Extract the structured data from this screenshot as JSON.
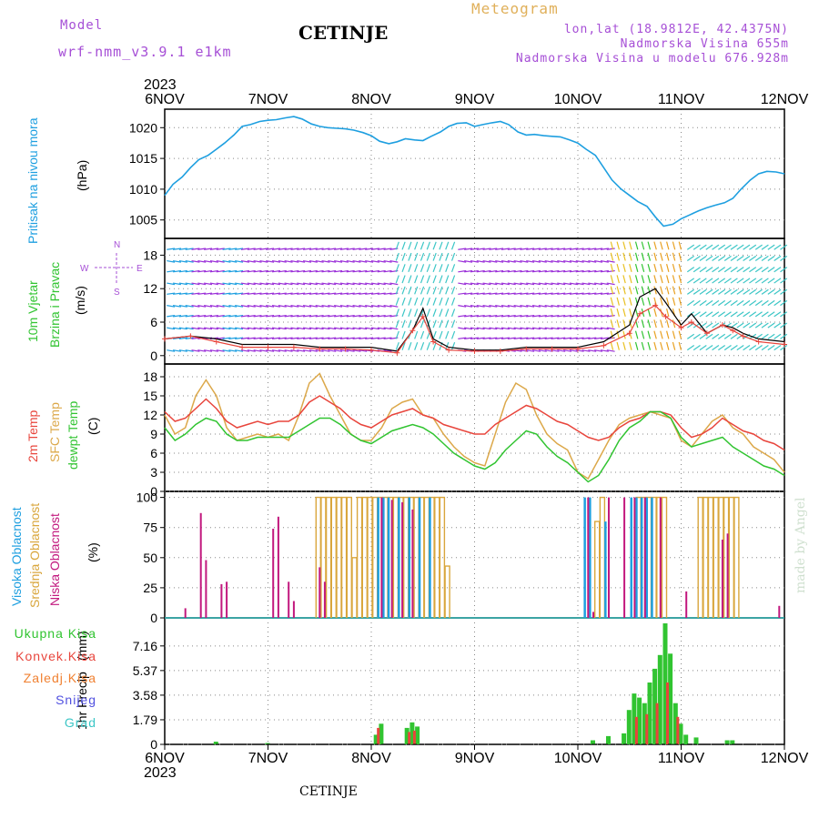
{
  "header": {
    "model_label": "Model",
    "model_name": "wrf-nmm_v3.9.1  e1km",
    "station_title": "CETINJE",
    "product": "Meteogram",
    "coords": "lon,lat (18.9812E, 42.4375N)",
    "elevation": "Nadmorska Visina 655m",
    "model_elevation": "Nadmorska Visina u modelu 676.928m",
    "watermark": "made by Angel",
    "footer_station": "CETINJE"
  },
  "colors": {
    "pressure": "#1e9fe0",
    "temp2m": "#e8453c",
    "sfc_temp": "#dca84a",
    "dewpt": "#31c431",
    "high_cloud": "#1e9fe0",
    "mid_cloud": "#d9a63c",
    "low_cloud": "#c2187e",
    "total_precip": "#31c431",
    "conv_precip": "#e8453c",
    "frozen": "#f08030",
    "snow": "#5050e0",
    "graupel": "#3cc6c6",
    "wind_purple": "#9a2fd8",
    "gust": "#000000",
    "wind_speed": "#e8453c",
    "header_purple": "#a64fd6",
    "header_orange": "#e0b05a"
  },
  "chart_data": [
    {
      "type": "line",
      "panel": "pressure",
      "ylabel_1": "Pritisak na nivou mora",
      "ylabel_2": "(hPa)",
      "ylim": [
        1002,
        1023
      ],
      "yticks": [
        1005,
        1010,
        1015,
        1020
      ],
      "x_days": [
        0,
        0.08,
        0.17,
        0.25,
        0.33,
        0.42,
        0.5,
        0.58,
        0.67,
        0.75,
        0.83,
        0.92,
        1.0,
        1.08,
        1.17,
        1.25,
        1.33,
        1.42,
        1.5,
        1.58,
        1.67,
        1.75,
        1.83,
        1.92,
        2.0,
        2.08,
        2.17,
        2.25,
        2.33,
        2.42,
        2.5,
        2.58,
        2.67,
        2.75,
        2.83,
        2.92,
        3.0,
        3.08,
        3.17,
        3.25,
        3.33,
        3.42,
        3.5,
        3.58,
        3.67,
        3.75,
        3.83,
        3.92,
        4.0,
        4.08,
        4.17,
        4.25,
        4.33,
        4.42,
        4.5,
        4.58,
        4.67,
        4.75,
        4.83,
        4.92,
        5.0,
        5.08,
        5.17,
        5.25,
        5.33,
        5.42,
        5.5,
        5.58,
        5.67,
        5.75,
        5.83,
        5.92,
        6.0
      ],
      "values": [
        1009,
        1010.8,
        1012,
        1013.5,
        1014.8,
        1015.5,
        1016.5,
        1017.5,
        1018.8,
        1020.2,
        1020.5,
        1021.0,
        1021.2,
        1021.3,
        1021.6,
        1021.8,
        1021.4,
        1020.6,
        1020.2,
        1020.0,
        1019.9,
        1019.8,
        1019.6,
        1019.2,
        1018.7,
        1017.8,
        1017.4,
        1017.7,
        1018.2,
        1018.0,
        1017.9,
        1018.6,
        1019.3,
        1020.2,
        1020.7,
        1020.8,
        1020.2,
        1020.5,
        1020.8,
        1021.0,
        1020.5,
        1019.3,
        1018.8,
        1018.9,
        1018.7,
        1018.6,
        1018.5,
        1018.0,
        1017.5,
        1016.5,
        1015.5,
        1013.5,
        1011.5,
        1010.0,
        1009.0,
        1008.0,
        1007.2,
        1005.5,
        1004.0,
        1004.3,
        1005.2,
        1005.8,
        1006.5,
        1007.0,
        1007.4,
        1007.8,
        1008.5,
        1010.0,
        1011.5,
        1012.5,
        1012.9,
        1012.8,
        1012.5
      ]
    },
    {
      "type": "line",
      "panel": "wind",
      "ylabel_1": "10m Vjetar",
      "ylabel_2": "Brzina i Pravac",
      "ylabel_3": "(m/s)",
      "compass_n": "N",
      "compass_w": "W",
      "compass_e": "E",
      "compass_s": "S",
      "ylim": [
        -1.5,
        21
      ],
      "yticks": [
        0,
        6,
        12,
        18
      ],
      "x_days": [
        0,
        0.25,
        0.5,
        0.75,
        1.0,
        1.25,
        1.5,
        1.75,
        2.0,
        2.25,
        2.4,
        2.5,
        2.6,
        2.75,
        3.0,
        3.25,
        3.5,
        3.75,
        4.0,
        4.25,
        4.5,
        4.6,
        4.75,
        4.85,
        5.0,
        5.1,
        5.25,
        5.4,
        5.5,
        5.6,
        5.75,
        6.0
      ],
      "gust": [
        3,
        3.5,
        3,
        2,
        2,
        2,
        1.5,
        1.5,
        1.5,
        0.8,
        4.5,
        8.5,
        3,
        1.5,
        1.0,
        1.0,
        1.5,
        1.5,
        1.5,
        2.5,
        5.5,
        10.5,
        12,
        9.5,
        5.5,
        7.5,
        4.0,
        5.5,
        5.0,
        4.0,
        3.0,
        2.5
      ],
      "speed": [
        3,
        3.5,
        2.5,
        1.5,
        1.5,
        1.5,
        1.2,
        1.2,
        1.0,
        0.5,
        4.5,
        7.0,
        2.5,
        1.0,
        0.8,
        0.8,
        1.2,
        1.2,
        1.2,
        1.8,
        4.0,
        7.5,
        9.0,
        7.0,
        5.0,
        6.0,
        4.0,
        5.5,
        4.5,
        3.5,
        2.5,
        2.0
      ]
    },
    {
      "type": "line",
      "panel": "temperature",
      "ylabel_1": "2m Temp",
      "ylabel_2": "SFC Temp",
      "ylabel_3": "dewpt Temp",
      "ylabel_4": "(C)",
      "ylim": [
        0,
        20
      ],
      "yticks": [
        0,
        3,
        6,
        9,
        12,
        15,
        18
      ],
      "x_days": [
        0,
        0.1,
        0.2,
        0.3,
        0.4,
        0.5,
        0.6,
        0.7,
        0.8,
        0.9,
        1.0,
        1.1,
        1.2,
        1.3,
        1.4,
        1.5,
        1.6,
        1.7,
        1.8,
        1.9,
        2.0,
        2.1,
        2.2,
        2.3,
        2.4,
        2.5,
        2.6,
        2.7,
        2.8,
        2.9,
        3.0,
        3.1,
        3.2,
        3.3,
        3.4,
        3.5,
        3.6,
        3.7,
        3.8,
        3.9,
        4.0,
        4.1,
        4.2,
        4.3,
        4.4,
        4.5,
        4.6,
        4.7,
        4.8,
        4.9,
        5.0,
        5.1,
        5.2,
        5.3,
        5.4,
        5.5,
        5.6,
        5.7,
        5.8,
        5.9,
        6.0
      ],
      "temp2m": [
        12.5,
        11,
        11.5,
        13,
        14.5,
        13,
        11,
        10,
        10.5,
        11,
        10.5,
        11,
        11,
        12,
        14,
        15,
        14,
        13,
        11.5,
        10.5,
        10,
        11,
        12,
        12.5,
        13,
        12,
        11.5,
        10.5,
        10,
        9.5,
        9,
        9,
        10.5,
        11.5,
        12.5,
        13.5,
        13,
        12,
        11,
        10.5,
        9.5,
        8.5,
        8,
        8.5,
        10,
        11,
        11.5,
        12.5,
        12.5,
        12,
        10,
        8.5,
        9,
        10,
        11.5,
        10.5,
        9.5,
        9,
        8,
        7.5,
        6.5
      ],
      "sfc_temp": [
        12,
        9,
        10,
        15,
        17.5,
        15,
        10,
        8,
        8.5,
        9,
        8.5,
        9,
        8,
        12,
        17,
        18.5,
        15,
        12,
        9,
        8,
        8,
        10,
        13,
        14,
        14.5,
        12,
        11.5,
        9,
        7,
        5.5,
        4.5,
        4,
        9,
        14,
        17,
        16,
        12,
        9,
        7.5,
        6.5,
        3,
        2,
        5,
        8,
        10.5,
        11.5,
        12,
        12.5,
        12,
        11.5,
        8,
        7,
        9,
        11,
        12,
        10,
        9,
        7,
        6,
        5,
        3
      ]
    }
  ],
  "dewpt_values": [
    10,
    8,
    9,
    10.5,
    11.5,
    11,
    9,
    8,
    8,
    8.5,
    8.5,
    8.5,
    8.5,
    9.5,
    10.5,
    11.5,
    11.5,
    10.5,
    9,
    8,
    7.5,
    8.5,
    9.5,
    10,
    10.5,
    10,
    9,
    7.5,
    6,
    5,
    4,
    3.5,
    4.5,
    6.5,
    8,
    9.5,
    9,
    7,
    5.5,
    4.5,
    3,
    1.5,
    2.5,
    5,
    8,
    10,
    11,
    12.5,
    12.5,
    11.5,
    8.5,
    7,
    7.5,
    8,
    8.5,
    7,
    6,
    5,
    4,
    3.5,
    2.5
  ],
  "cloud": {
    "ylabel_1": "Visoka Oblacnost",
    "ylabel_2": "Srednja Oblacnost",
    "ylabel_3": "Niska Oblacnost",
    "ylabel_4": "(%)",
    "ylim": [
      0,
      105
    ],
    "yticks": [
      0,
      25,
      50,
      75,
      100
    ],
    "low_x": [
      0.2,
      0.35,
      0.4,
      0.55,
      0.6,
      1.05,
      1.1,
      1.2,
      1.25,
      1.5,
      1.55,
      2.1,
      2.2,
      2.3,
      2.4,
      4.1,
      4.15,
      4.3,
      4.45,
      4.55,
      4.65,
      4.8,
      5.05,
      5.4,
      5.45,
      5.95
    ],
    "low_v": [
      8,
      87,
      48,
      28,
      30,
      74,
      84,
      30,
      14,
      42,
      30,
      100,
      98,
      96,
      90,
      100,
      5,
      100,
      100,
      100,
      100,
      100,
      22,
      65,
      70,
      10
    ],
    "mid_x": [
      1.5,
      1.55,
      1.6,
      1.65,
      1.7,
      1.75,
      1.8,
      1.85,
      1.9,
      1.95,
      2.0,
      2.05,
      2.1,
      2.15,
      2.2,
      2.25,
      2.3,
      2.35,
      2.4,
      2.45,
      2.5,
      2.55,
      2.6,
      2.65,
      2.7,
      2.75,
      4.2,
      4.25,
      4.6,
      4.65,
      4.7,
      4.75,
      4.8,
      4.85,
      5.2,
      5.25,
      5.3,
      5.35,
      5.4,
      5.45,
      5.5,
      5.55
    ],
    "mid_v": [
      100,
      100,
      100,
      100,
      100,
      100,
      100,
      50,
      100,
      100,
      100,
      100,
      100,
      100,
      100,
      100,
      100,
      100,
      100,
      100,
      100,
      100,
      100,
      100,
      100,
      43,
      80,
      100,
      100,
      100,
      100,
      100,
      100,
      100,
      100,
      100,
      100,
      100,
      100,
      100,
      100,
      100
    ],
    "high_x": [
      2.05,
      2.1,
      2.15,
      2.25,
      2.35,
      2.45,
      2.55,
      4.05,
      4.1,
      4.25,
      4.5,
      4.55,
      4.6,
      4.65,
      4.7
    ],
    "high_v": [
      100,
      100,
      100,
      100,
      100,
      100,
      100,
      100,
      100,
      80,
      100,
      100,
      100,
      100,
      100
    ]
  },
  "precip": {
    "ylabel_1": "1hr Precip",
    "ylabel_2": "(mm)",
    "legend_total": "Ukupna  Kisa",
    "legend_conv": "Konvek.Kisa",
    "legend_frozen": "Zaledj.Kisa",
    "legend_snow": "Snijeg",
    "legend_graupel": "Grad",
    "ylim": [
      0,
      9.2
    ],
    "yticks": [
      0,
      1.79,
      3.58,
      5.37,
      7.16
    ],
    "ytick_labels": [
      "0",
      "1.79",
      "3.58",
      "5.37",
      "7.16"
    ],
    "total_x": [
      0.5,
      1.0,
      2.05,
      2.1,
      2.35,
      2.4,
      2.45,
      4.15,
      4.3,
      4.45,
      4.5,
      4.55,
      4.6,
      4.65,
      4.7,
      4.75,
      4.8,
      4.85,
      4.9,
      4.95,
      5.0,
      5.05,
      5.15,
      5.45,
      5.5
    ],
    "total_v": [
      0.2,
      0.1,
      0.7,
      1.5,
      1.2,
      1.6,
      1.3,
      0.3,
      0.6,
      0.8,
      2.5,
      3.7,
      3.4,
      3.0,
      4.5,
      5.5,
      6.5,
      8.8,
      6.6,
      3.0,
      1.5,
      0.7,
      0.5,
      0.3,
      0.3
    ],
    "conv_x": [
      2.05,
      2.35,
      2.4,
      4.55,
      4.65,
      4.75,
      4.85,
      4.95
    ],
    "conv_v": [
      1.2,
      0.9,
      1.0,
      2.0,
      2.2,
      3.0,
      4.5,
      2.0
    ]
  },
  "time_axis": {
    "labels": [
      "6NOV",
      "7NOV",
      "8NOV",
      "9NOV",
      "10NOV",
      "11NOV",
      "12NOV"
    ],
    "year": "2023"
  }
}
